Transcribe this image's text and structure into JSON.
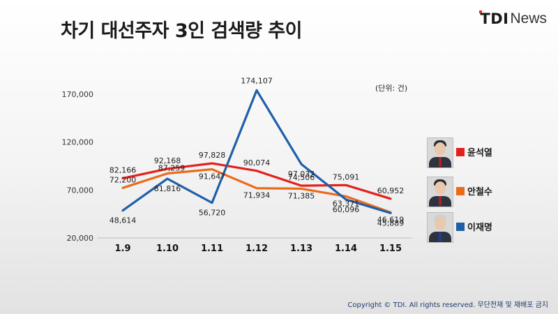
{
  "header": {
    "title": "차기 대선주자 3인 검색량 추이",
    "brand_tdi": "TDI",
    "brand_news": "News"
  },
  "unit_note": "(단위: 건)",
  "copyright": "Copyright © TDI. All rights reserved. 무단전재 및 재배포 금지",
  "chart_data": {
    "type": "line",
    "categories": [
      "1.9",
      "1.10",
      "1.11",
      "1.12",
      "1.13",
      "1.14",
      "1.15"
    ],
    "ytick_labels": [
      "20,000",
      "70,000",
      "120,000",
      "170,000"
    ],
    "yticks": [
      20000,
      70000,
      120000,
      170000
    ],
    "ylim": [
      20000,
      170000
    ],
    "grid": false,
    "legend_position": "right",
    "series": [
      {
        "name": "윤석열",
        "color": "#e3211c",
        "values": [
          82166,
          92168,
          97828,
          90074,
          74506,
          75091,
          60952
        ],
        "labels": [
          "82,166",
          "92,168",
          "97,828",
          "90,074",
          "74,506",
          "75,091",
          "60,952"
        ]
      },
      {
        "name": "안철수",
        "color": "#ec6a1b",
        "values": [
          72200,
          87259,
          91647,
          71934,
          71385,
          63371,
          46619
        ],
        "labels": [
          "72,200",
          "87,259",
          "91,647",
          "71,934",
          "71,385",
          "63,371",
          "46,619"
        ]
      },
      {
        "name": "이재명",
        "color": "#1f5fa8",
        "values": [
          48614,
          81816,
          56720,
          174107,
          97032,
          60096,
          45889
        ],
        "labels": [
          "48,614",
          "81,816",
          "56,720",
          "174,107",
          "97,032",
          "60,096",
          "45,889"
        ]
      }
    ]
  },
  "legend": [
    {
      "name": "윤석열",
      "color": "#e3211c",
      "avatar": "person-photo"
    },
    {
      "name": "안철수",
      "color": "#ec6a1b",
      "avatar": "person-photo"
    },
    {
      "name": "이재명",
      "color": "#1f5fa8",
      "avatar": "person-photo"
    }
  ]
}
